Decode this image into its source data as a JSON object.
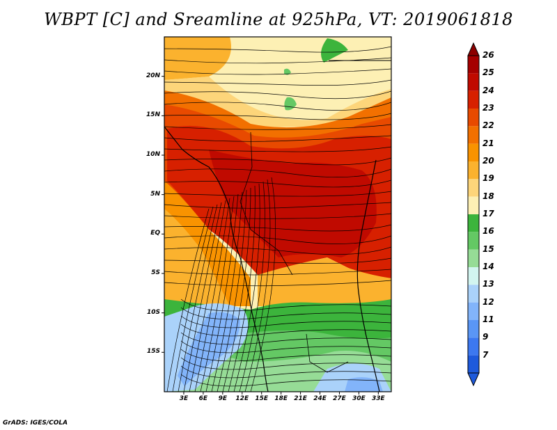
{
  "title": "WBPT [C] and Sreamline at 925hPa, VT: 2019061818",
  "footer": "GrADS: IGES/COLA",
  "map": {
    "lat_ticks": [
      "20N",
      "15N",
      "10N",
      "5N",
      "EQ",
      "5S",
      "10S",
      "15S"
    ],
    "lon_ticks": [
      "3E",
      "6E",
      "9E",
      "12E",
      "15E",
      "18E",
      "21E",
      "24E",
      "27E",
      "30E",
      "33E"
    ],
    "lat_values": [
      20,
      15,
      10,
      5,
      0,
      -5,
      -10,
      -15
    ],
    "lon_values": [
      3,
      6,
      9,
      12,
      15,
      18,
      21,
      24,
      27,
      30,
      33
    ],
    "extent": {
      "lon": [
        0,
        35
      ],
      "lat": [
        -20,
        25
      ]
    }
  },
  "colorbar": {
    "labels": [
      "26",
      "25",
      "24",
      "23",
      "22",
      "21",
      "20",
      "19",
      "18",
      "17",
      "16",
      "15",
      "14",
      "13",
      "12",
      "11",
      "9",
      "7"
    ],
    "colors": [
      "#a50000",
      "#c00a00",
      "#d72000",
      "#e84a00",
      "#f27000",
      "#f99300",
      "#fbb22e",
      "#fdd57a",
      "#fdf0b4",
      "#3cb43c",
      "#64c864",
      "#96dc96",
      "#d2f5f0",
      "#aad2fa",
      "#82b4fa",
      "#5a96f5",
      "#3c78f0",
      "#1e5adc"
    ],
    "top_color": "#8c0000",
    "bottom_color": "#1e5adc"
  }
}
